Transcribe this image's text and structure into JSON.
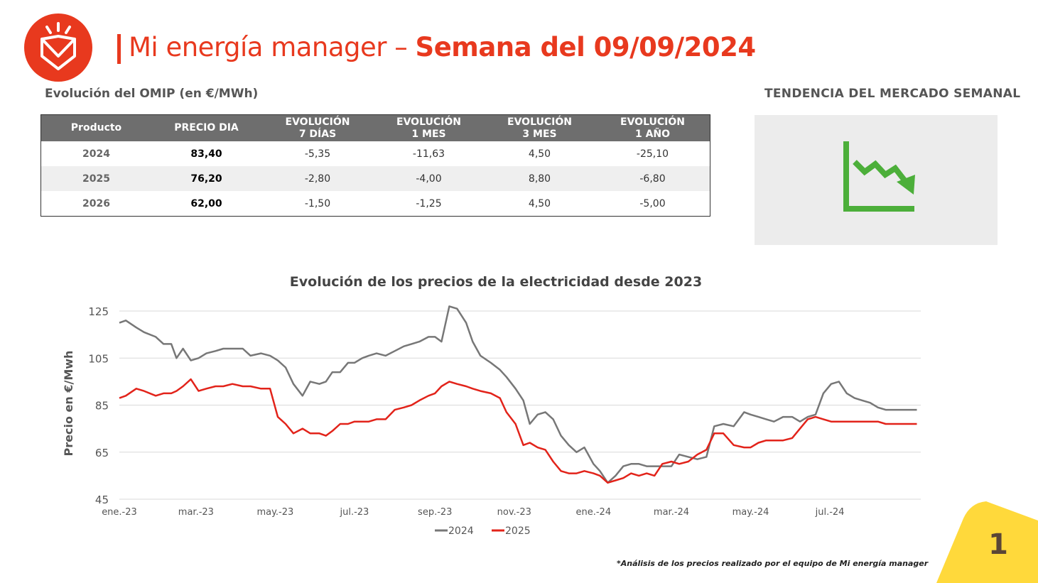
{
  "header": {
    "title_regular": "Mi energía manager –",
    "title_bold": "Semana del 09/09/2024"
  },
  "omip": {
    "subtitle": "Evolución del OMIP (en €/MWh)",
    "columns": [
      {
        "l1": "Producto",
        "l2": ""
      },
      {
        "l1": "PRECIO DIA",
        "l2": ""
      },
      {
        "l1": "EVOLUCIÓN",
        "l2": "7 DÍAS"
      },
      {
        "l1": "EVOLUCIÓN",
        "l2": "1 MES"
      },
      {
        "l1": "EVOLUCIÓN",
        "l2": "3 MES"
      },
      {
        "l1": "EVOLUCIÓN",
        "l2": "1 AÑO"
      }
    ],
    "rows": [
      {
        "product": "2024",
        "price": "83,40",
        "d7": "-5,35",
        "m1": "-11,63",
        "m3": "4,50",
        "y1": "-25,10"
      },
      {
        "product": "2025",
        "price": "76,20",
        "d7": "-2,80",
        "m1": "-4,00",
        "m3": "8,80",
        "y1": "-6,80"
      },
      {
        "product": "2026",
        "price": "62,00",
        "d7": "-1,50",
        "m1": "-1,25",
        "m3": "4,50",
        "y1": "-5,00"
      }
    ]
  },
  "trend": {
    "title": "TENDENCIA DEL MERCADO SEMANAL",
    "icon": "downtrend-chart-icon",
    "color": "#4caf3a"
  },
  "chart_data": {
    "type": "line",
    "title": "Evolución de los precios de la electricidad desde 2023",
    "ylabel": "Precio en €/Mwh",
    "xlabel": "",
    "ylim": [
      45,
      125
    ],
    "yticks": [
      45,
      65,
      85,
      105,
      125
    ],
    "xlim": [
      "2023-01-01",
      "2024-09-09"
    ],
    "xticks": [
      {
        "date": "2023-01-01",
        "label": "ene.-23"
      },
      {
        "date": "2023-03-01",
        "label": "mar.-23"
      },
      {
        "date": "2023-05-01",
        "label": "may.-23"
      },
      {
        "date": "2023-07-01",
        "label": "jul.-23"
      },
      {
        "date": "2023-09-01",
        "label": "sep.-23"
      },
      {
        "date": "2023-11-01",
        "label": "nov.-23"
      },
      {
        "date": "2024-01-01",
        "label": "ene.-24"
      },
      {
        "date": "2024-03-01",
        "label": "mar.-24"
      },
      {
        "date": "2024-05-01",
        "label": "may.-24"
      },
      {
        "date": "2024-07-01",
        "label": "jul.-24"
      }
    ],
    "grid": true,
    "legend_position": "bottom",
    "x": [
      "2023-01-01",
      "2023-01-06",
      "2023-01-14",
      "2023-01-20",
      "2023-01-29",
      "2023-02-04",
      "2023-02-10",
      "2023-02-14",
      "2023-02-19",
      "2023-02-25",
      "2023-03-03",
      "2023-03-09",
      "2023-03-16",
      "2023-03-22",
      "2023-03-29",
      "2023-04-06",
      "2023-04-12",
      "2023-04-20",
      "2023-04-27",
      "2023-05-03",
      "2023-05-09",
      "2023-05-15",
      "2023-05-22",
      "2023-05-28",
      "2023-06-04",
      "2023-06-09",
      "2023-06-14",
      "2023-06-20",
      "2023-06-26",
      "2023-07-01",
      "2023-07-07",
      "2023-07-12",
      "2023-07-18",
      "2023-07-25",
      "2023-08-01",
      "2023-08-08",
      "2023-08-14",
      "2023-08-20",
      "2023-08-27",
      "2023-09-01",
      "2023-09-06",
      "2023-09-12",
      "2023-09-18",
      "2023-09-25",
      "2023-09-30",
      "2023-10-06",
      "2023-10-14",
      "2023-10-21",
      "2023-10-26",
      "2023-11-02",
      "2023-11-08",
      "2023-11-13",
      "2023-11-19",
      "2023-11-25",
      "2023-12-01",
      "2023-12-07",
      "2023-12-13",
      "2023-12-19",
      "2023-12-25",
      "2024-01-01",
      "2024-01-06",
      "2024-01-12",
      "2024-01-18",
      "2024-01-24",
      "2024-01-30",
      "2024-02-05",
      "2024-02-11",
      "2024-02-17",
      "2024-02-23",
      "2024-03-01",
      "2024-03-07",
      "2024-03-14",
      "2024-03-21",
      "2024-03-28",
      "2024-04-03",
      "2024-04-10",
      "2024-04-18",
      "2024-04-26",
      "2024-05-01",
      "2024-05-07",
      "2024-05-13",
      "2024-05-19",
      "2024-05-26",
      "2024-06-02",
      "2024-06-08",
      "2024-06-14",
      "2024-06-20",
      "2024-06-26",
      "2024-07-02",
      "2024-07-08",
      "2024-07-14",
      "2024-07-20",
      "2024-07-26",
      "2024-08-01",
      "2024-08-07",
      "2024-08-13",
      "2024-08-19",
      "2024-08-25",
      "2024-08-31",
      "2024-09-06"
    ],
    "series": [
      {
        "name": "2024",
        "color": "#777777",
        "values": [
          120,
          121,
          118,
          116,
          114,
          111,
          111,
          105,
          109,
          104,
          105,
          107,
          108,
          109,
          109,
          109,
          106,
          107,
          106,
          104,
          101,
          94,
          89,
          95,
          94,
          95,
          99,
          99,
          103,
          103,
          105,
          106,
          107,
          106,
          108,
          110,
          111,
          112,
          114,
          114,
          112,
          127,
          126,
          120,
          112,
          106,
          103,
          100,
          97,
          92,
          87,
          77,
          81,
          82,
          79,
          72,
          68,
          65,
          67,
          60,
          57,
          52,
          55,
          59,
          60,
          60,
          59,
          59,
          59,
          59,
          64,
          63,
          62,
          63,
          76,
          77,
          76,
          82,
          81,
          80,
          79,
          78,
          80,
          80,
          78,
          80,
          81,
          90,
          94,
          95,
          90,
          88,
          87,
          86,
          84,
          83,
          83,
          83,
          83,
          83
        ],
        "note": ""
      },
      {
        "name": "2025",
        "color": "#e2231a",
        "values": [
          88,
          89,
          92,
          91,
          89,
          90,
          90,
          91,
          93,
          96,
          91,
          92,
          93,
          93,
          94,
          93,
          93,
          92,
          92,
          80,
          77,
          73,
          75,
          73,
          73,
          72,
          74,
          77,
          77,
          78,
          78,
          78,
          79,
          79,
          83,
          84,
          85,
          87,
          89,
          90,
          93,
          95,
          94,
          93,
          92,
          91,
          90,
          88,
          82,
          77,
          68,
          69,
          67,
          66,
          61,
          57,
          56,
          56,
          57,
          56,
          55,
          52,
          53,
          54,
          56,
          55,
          56,
          55,
          60,
          61,
          60,
          61,
          64,
          66,
          73,
          73,
          68,
          67,
          67,
          69,
          70,
          70,
          70,
          71,
          75,
          79,
          80,
          79,
          78,
          78,
          78,
          78,
          78,
          78,
          78,
          77,
          77,
          77,
          77,
          77
        ]
      }
    ]
  },
  "footnote": "*Análisis de los precios realizado por el equipo de Mi energía manager",
  "page_number": "1",
  "colors": {
    "accent": "#e8391e",
    "yellow": "#ffd93b",
    "header_gray": "#6e6e6e"
  }
}
